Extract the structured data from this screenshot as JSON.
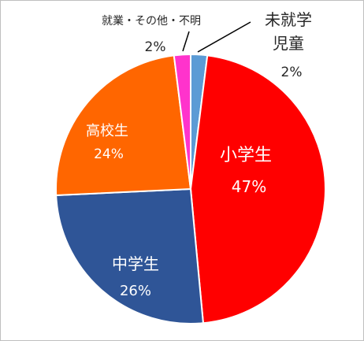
{
  "chart_data": {
    "type": "pie",
    "title": "",
    "legend": "none",
    "slices": [
      {
        "label_lines": [
          "未就学",
          "児童"
        ],
        "value": 2,
        "pct_label": "2%",
        "color": "#5b9bd5",
        "label_color": "#262626"
      },
      {
        "label_lines": [
          "小学生"
        ],
        "value": 47,
        "pct_label": "47%",
        "color": "#ff0000",
        "label_color": "#ffffff"
      },
      {
        "label_lines": [
          "中学生"
        ],
        "value": 26,
        "pct_label": "26%",
        "color": "#2f5597",
        "label_color": "#ffffff"
      },
      {
        "label_lines": [
          "高校生"
        ],
        "value": 24,
        "pct_label": "24%",
        "color": "#ff6600",
        "label_color": "#ffffff"
      },
      {
        "label_lines": [
          "就業・その他・不明"
        ],
        "value": 2,
        "pct_label": "2%",
        "color": "#ff33cc",
        "label_color": "#262626"
      }
    ]
  }
}
